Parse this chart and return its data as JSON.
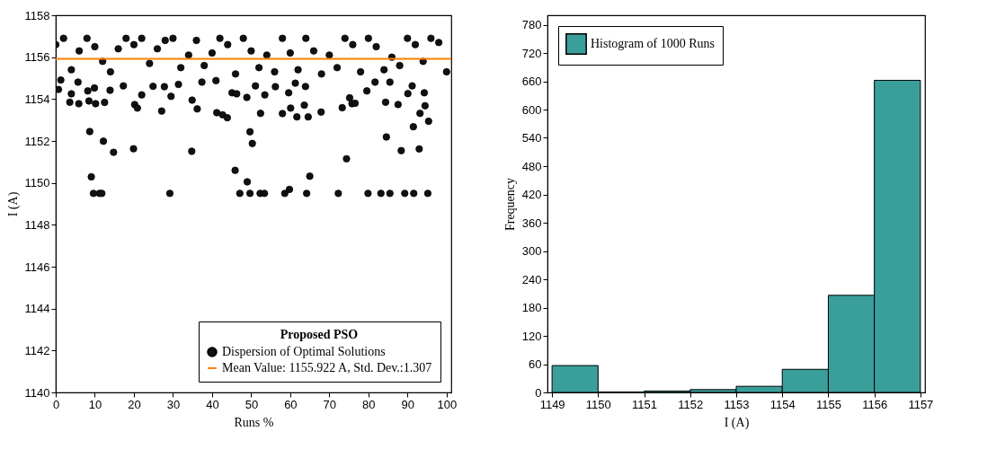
{
  "chart_data": [
    {
      "type": "scatter",
      "xlabel": "Runs %",
      "ylabel": "I (A)",
      "legend_title": "Proposed PSO",
      "legend": "bottom right",
      "marker": "circle",
      "xlim": [
        0,
        101.2
      ],
      "xticks": [
        0,
        10,
        20,
        30,
        40,
        50,
        60,
        70,
        80,
        90,
        100
      ],
      "ylim": [
        1140,
        1158
      ],
      "yticks": [
        1140,
        1142,
        1144,
        1146,
        1148,
        1150,
        1152,
        1154,
        1156,
        1158
      ],
      "x": [
        0,
        2,
        4,
        6,
        8,
        10,
        12,
        14,
        16,
        18,
        20,
        22,
        24,
        26,
        28,
        30,
        32,
        34,
        36,
        38,
        40,
        42,
        44,
        46,
        48,
        50,
        52,
        54,
        56,
        58,
        60,
        62,
        64,
        66,
        68,
        70,
        72,
        74,
        76,
        78,
        80,
        82,
        84,
        86,
        88,
        90,
        92,
        94,
        96,
        98,
        100,
        9.65,
        11.2,
        11.8,
        29.2,
        47.1,
        49.7,
        52.3,
        53.4,
        58.6,
        64.2,
        72.3,
        79.9,
        83.2,
        85.5,
        89.3,
        91.6,
        95.2,
        9.1,
        59.8,
        49.0,
        65.0,
        45.9,
        8.7,
        12.2,
        14.8,
        19.9,
        34.8,
        49.7,
        50.3,
        74.4,
        84.6,
        88.4,
        91.5,
        93.0,
        3.6,
        5.9,
        8.5,
        10.2,
        12.5,
        20.2,
        20.9,
        27.1,
        29.5,
        34.9,
        36.2,
        41.2,
        42.7,
        43.9,
        48.9,
        52.4,
        53.5,
        58.0,
        60.1,
        61.7,
        63.6,
        64.6,
        67.9,
        73.3,
        75.2,
        75.8,
        76.6,
        84.4,
        87.6,
        90.1,
        93.2,
        94.5,
        95.4,
        0.7,
        1.3,
        4.0,
        5.7,
        8.2,
        9.9,
        13.9,
        17.3,
        22.0,
        24.9,
        27.8,
        31.4,
        37.4,
        41.0,
        45.1,
        46.3,
        51.1,
        56.2,
        59.6,
        61.3,
        63.9,
        79.6,
        81.7,
        85.5,
        91.2,
        94.3
      ],
      "series": [
        {
          "name": "Dispersion of Optimal Solutions",
          "color": "#111111",
          "values": [
            1156.6,
            1156.9,
            1155.4,
            1156.3,
            1156.9,
            1156.5,
            1155.8,
            1155.3,
            1156.4,
            1156.9,
            1156.6,
            1156.9,
            1155.7,
            1156.4,
            1156.8,
            1156.9,
            1155.5,
            1156.1,
            1156.8,
            1155.6,
            1156.2,
            1156.9,
            1156.6,
            1155.2,
            1156.9,
            1156.3,
            1155.5,
            1156.1,
            1155.3,
            1156.9,
            1156.2,
            1155.4,
            1156.9,
            1156.3,
            1155.2,
            1156.1,
            1155.5,
            1156.9,
            1156.6,
            1155.3,
            1156.9,
            1156.5,
            1155.4,
            1156.0,
            1155.6,
            1156.9,
            1156.6,
            1155.8,
            1156.9,
            1156.7,
            1155.3,
            1149.5,
            1149.5,
            1149.5,
            1149.5,
            1149.5,
            1149.5,
            1149.5,
            1149.5,
            1149.5,
            1149.5,
            1149.5,
            1149.5,
            1149.5,
            1149.5,
            1149.5,
            1149.5,
            1149.5,
            1150.29,
            1149.69,
            1150.05,
            1150.32,
            1150.6,
            1152.45,
            1151.99,
            1151.46,
            1151.63,
            1151.51,
            1152.44,
            1151.88,
            1151.15,
            1152.19,
            1151.54,
            1152.68,
            1151.62,
            1153.85,
            1153.78,
            1153.91,
            1153.78,
            1153.84,
            1153.74,
            1153.57,
            1153.43,
            1154.13,
            1153.95,
            1153.53,
            1153.35,
            1153.25,
            1153.11,
            1154.08,
            1153.32,
            1154.2,
            1153.31,
            1153.57,
            1153.15,
            1153.71,
            1153.15,
            1153.38,
            1153.59,
            1154.06,
            1153.78,
            1153.8,
            1153.85,
            1153.74,
            1154.26,
            1153.32,
            1153.68,
            1152.94,
            1154.46,
            1154.91,
            1154.25,
            1154.81,
            1154.39,
            1154.53,
            1154.42,
            1154.63,
            1154.2,
            1154.61,
            1154.59,
            1154.7,
            1154.81,
            1154.88,
            1154.3,
            1154.25,
            1154.63,
            1154.59,
            1154.3,
            1154.76,
            1154.6,
            1154.39,
            1154.81,
            1154.81,
            1154.63,
            1154.3
          ]
        }
      ],
      "ref_lines": [
        {
          "axis": "y",
          "value": 1155.922,
          "label": "Mean Value: 1155.922 A, Std. Dev.:1.307",
          "color": "#ff8000"
        }
      ]
    },
    {
      "type": "histogram",
      "xlabel": "I (A)",
      "ylabel": "Frequency",
      "legend": "top left",
      "xlim": [
        1148.9,
        1157.1
      ],
      "xticks": [
        1149,
        1150,
        1151,
        1152,
        1153,
        1154,
        1155,
        1156,
        1157
      ],
      "ylim": [
        0,
        800
      ],
      "yticks": [
        0,
        60,
        120,
        180,
        240,
        300,
        360,
        420,
        480,
        540,
        600,
        660,
        720,
        780
      ],
      "bins": [
        1149,
        1150,
        1151,
        1152,
        1153,
        1154,
        1155,
        1156,
        1157
      ],
      "series": [
        {
          "name": "Histogram of 1000 Runs",
          "color": "#3a9e9b",
          "values": [
            57,
            1,
            3,
            6,
            13,
            49,
            206,
            662
          ]
        }
      ]
    }
  ]
}
